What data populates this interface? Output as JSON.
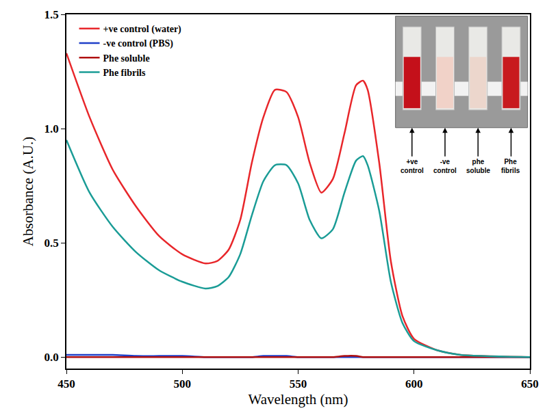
{
  "chart_data": {
    "type": "line",
    "x_label": "Wavelength (nm)",
    "y_label": "Absorbance (A.U.)",
    "x": [
      450,
      460,
      470,
      480,
      490,
      500,
      510,
      515,
      520,
      525,
      530,
      535,
      540,
      545,
      550,
      555,
      560,
      565,
      570,
      575,
      578,
      580,
      585,
      590,
      595,
      600,
      610,
      620,
      650
    ],
    "series": [
      {
        "name": "+ve control (water)",
        "color": "#e8262a",
        "values": [
          1.33,
          1.05,
          0.82,
          0.66,
          0.53,
          0.45,
          0.41,
          0.42,
          0.47,
          0.6,
          0.85,
          1.05,
          1.17,
          1.16,
          1.05,
          0.85,
          0.72,
          0.78,
          0.98,
          1.19,
          1.21,
          1.17,
          0.85,
          0.42,
          0.18,
          0.08,
          0.03,
          0.01,
          0.0
        ]
      },
      {
        "name": "-ve control (PBS)",
        "color": "#1f3fc8",
        "values": [
          0.01,
          0.01,
          0.01,
          0.005,
          0.005,
          0.005,
          0.0,
          0.0,
          0.0,
          0.0,
          0.0,
          0.005,
          0.005,
          0.005,
          0.0,
          0.0,
          0.0,
          0.0,
          0.0,
          0.0,
          0.0,
          0.0,
          0.0,
          0.0,
          0.0,
          0.0,
          0.0,
          0.0,
          0.0
        ]
      },
      {
        "name": "Phe soluble",
        "color": "#b01010",
        "values": [
          0.0,
          0.0,
          0.0,
          0.0,
          0.0,
          0.0,
          0.0,
          0.0,
          0.0,
          0.0,
          0.0,
          0.0,
          0.0,
          0.0,
          0.0,
          0.0,
          0.0,
          0.0,
          0.005,
          0.005,
          0.0,
          0.0,
          0.0,
          0.0,
          0.0,
          0.0,
          0.0,
          0.0,
          0.0
        ]
      },
      {
        "name": "Phe fibrils",
        "color": "#1a9c96",
        "values": [
          0.95,
          0.72,
          0.57,
          0.46,
          0.38,
          0.33,
          0.3,
          0.31,
          0.35,
          0.45,
          0.62,
          0.77,
          0.84,
          0.84,
          0.76,
          0.6,
          0.52,
          0.56,
          0.72,
          0.86,
          0.88,
          0.84,
          0.64,
          0.33,
          0.15,
          0.07,
          0.03,
          0.01,
          0.0
        ]
      }
    ],
    "xlim": [
      450,
      650
    ],
    "xticks": [
      450,
      500,
      550,
      600,
      650
    ],
    "ylim": [
      -0.05,
      1.5
    ],
    "yticks": [
      {
        "value": 0,
        "label": "0.0"
      },
      {
        "value": 0.5,
        "label": "0.5"
      },
      {
        "value": 1,
        "label": "1.0"
      },
      {
        "value": 1.5,
        "label": "1.5"
      }
    ],
    "annotations": [
      "+ve control",
      "-ve control",
      "phe soluble",
      "Phe fibrils"
    ],
    "legend": "upper left",
    "grid": false
  }
}
